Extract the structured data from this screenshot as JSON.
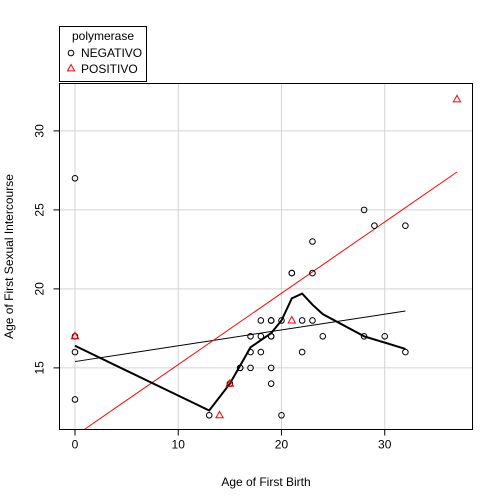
{
  "chart_data": {
    "type": "scatter",
    "title": "",
    "xlabel": "Age of First Birth",
    "ylabel": "Age of First Sexual Intercourse",
    "xlim": [
      -1.5,
      38.5
    ],
    "ylim": [
      11.1,
      33.0
    ],
    "x_ticks": [
      0,
      10,
      20,
      30
    ],
    "y_ticks": [
      15,
      20,
      25,
      30
    ],
    "grid": true,
    "legend": {
      "title": "polymerase",
      "placement": "top-left",
      "entries": [
        {
          "label": "NEGATIVO",
          "marker": "circle",
          "color": "#000000"
        },
        {
          "label": "POSITIVO",
          "marker": "triangle",
          "color": "#ff0000"
        }
      ]
    },
    "series": [
      {
        "name": "NEGATIVO",
        "marker": "circle",
        "color": "#000000",
        "points": [
          [
            0,
            27
          ],
          [
            0,
            17
          ],
          [
            0,
            16
          ],
          [
            0,
            13
          ],
          [
            13,
            12
          ],
          [
            15,
            14
          ],
          [
            16,
            15
          ],
          [
            16,
            15
          ],
          [
            17,
            17
          ],
          [
            17,
            16
          ],
          [
            17,
            15
          ],
          [
            18,
            18
          ],
          [
            18,
            17
          ],
          [
            18,
            16
          ],
          [
            19,
            18
          ],
          [
            19,
            18
          ],
          [
            19,
            17
          ],
          [
            19,
            17
          ],
          [
            19,
            15
          ],
          [
            19,
            14
          ],
          [
            20,
            18
          ],
          [
            20,
            12
          ],
          [
            21,
            21
          ],
          [
            21,
            21
          ],
          [
            22,
            18
          ],
          [
            22,
            16
          ],
          [
            23,
            23
          ],
          [
            23,
            21
          ],
          [
            23,
            18
          ],
          [
            24,
            17
          ],
          [
            28,
            25
          ],
          [
            28,
            17
          ],
          [
            29,
            24
          ],
          [
            30,
            17
          ],
          [
            32,
            24
          ],
          [
            32,
            16
          ]
        ]
      },
      {
        "name": "POSITIVO",
        "marker": "triangle",
        "color": "#ff0000",
        "points": [
          [
            0,
            17
          ],
          [
            14,
            12
          ],
          [
            15,
            14
          ],
          [
            21,
            18
          ],
          [
            37,
            32
          ]
        ]
      }
    ],
    "lines": [
      {
        "kind": "regression-negativo",
        "color": "#000000",
        "width": 1,
        "points": [
          [
            0,
            15.4
          ],
          [
            32,
            18.6
          ]
        ]
      },
      {
        "kind": "regression-positivo",
        "color": "#ff0000",
        "width": 1,
        "points": [
          [
            0.9,
            11.1
          ],
          [
            37,
            27.4
          ]
        ]
      },
      {
        "kind": "smooth",
        "color": "#000000",
        "width": 2,
        "points": [
          [
            0,
            16.4
          ],
          [
            13,
            12.3
          ],
          [
            15,
            14
          ],
          [
            17,
            16.3
          ],
          [
            19,
            17.2
          ],
          [
            20,
            18
          ],
          [
            21,
            19.4
          ],
          [
            22,
            19.7
          ],
          [
            23,
            19
          ],
          [
            24,
            18.4
          ],
          [
            28,
            17
          ],
          [
            32,
            16.2
          ]
        ]
      }
    ]
  }
}
